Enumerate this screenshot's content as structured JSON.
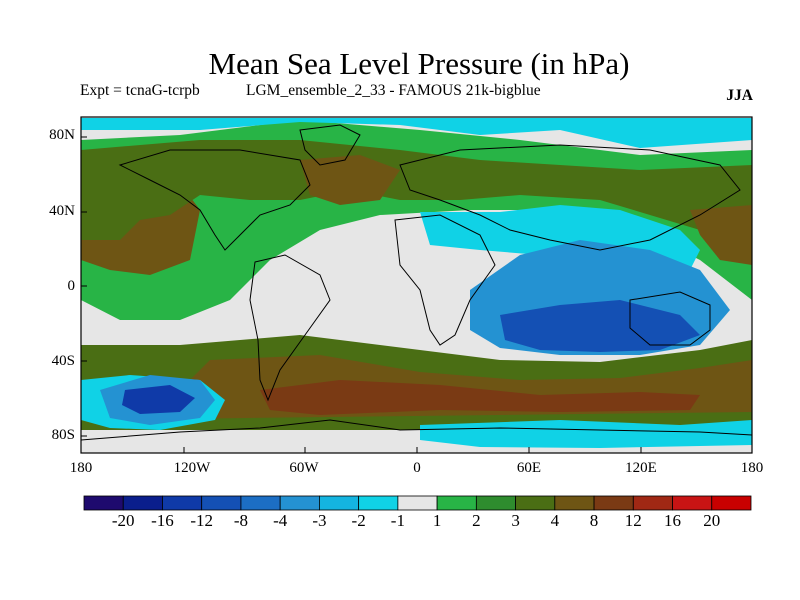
{
  "title": "Mean Sea Level Pressure (in hPa)",
  "left_subtitle": "Expt = tcnaG-tcrpb",
  "center_subtitle": "LGM_ensemble_2_33 - FAMOUS 21k-bigblue",
  "season": "JJA",
  "map": {
    "projection": "equirectangular",
    "lon_range": [
      -180,
      180
    ],
    "lat_range": [
      -90,
      90
    ],
    "lat_tick_labels": [
      "80N",
      "40N",
      "0",
      "40S",
      "80S"
    ],
    "lat_tick_values": [
      80,
      40,
      0,
      -40,
      -80
    ],
    "lon_tick_labels": [
      "180",
      "120W",
      "60W",
      "0",
      "60E",
      "120E",
      "180"
    ],
    "lon_tick_values": [
      -180,
      -120,
      -60,
      0,
      60,
      120,
      180
    ]
  },
  "colorbar": {
    "labels": [
      "-20",
      "-16",
      "-12",
      "-8",
      "-4",
      "-3",
      "-2",
      "-1",
      "1",
      "2",
      "3",
      "4",
      "8",
      "12",
      "16",
      "20"
    ],
    "colors": [
      "#1e0a6e",
      "#0a1e8c",
      "#0f3aa8",
      "#1450b4",
      "#1c6ec4",
      "#2492d2",
      "#14b4e0",
      "#10d2e6",
      "#e6e6e6",
      "#28b446",
      "#2e8c2e",
      "#4a6e14",
      "#6e5514",
      "#7a3a14",
      "#a02814",
      "#c81414",
      "#c80000"
    ]
  },
  "regions": [
    {
      "name": "neutral",
      "color": "#e6e6e6"
    },
    {
      "name": "south-atlantic-indian-green",
      "color": "#28b446"
    },
    {
      "name": "southern-ocean-brown",
      "color": "#6e5514"
    },
    {
      "name": "southern-ocean-red",
      "color": "#7a3a14"
    },
    {
      "name": "north-pacific-olive",
      "color": "#4a6e14"
    },
    {
      "name": "north-pacific-brown",
      "color": "#6e5514"
    },
    {
      "name": "north-atlantic-olive",
      "color": "#4a6e14"
    },
    {
      "name": "indian-ocean-blue",
      "color": "#2492d2"
    },
    {
      "name": "indian-ocean-deep-blue",
      "color": "#1450b4"
    },
    {
      "name": "south-pacific-blue",
      "color": "#2492d2"
    },
    {
      "name": "south-pacific-deep-blue",
      "color": "#0f3aa8"
    },
    {
      "name": "cyan-bands",
      "color": "#10d2e6"
    }
  ]
}
